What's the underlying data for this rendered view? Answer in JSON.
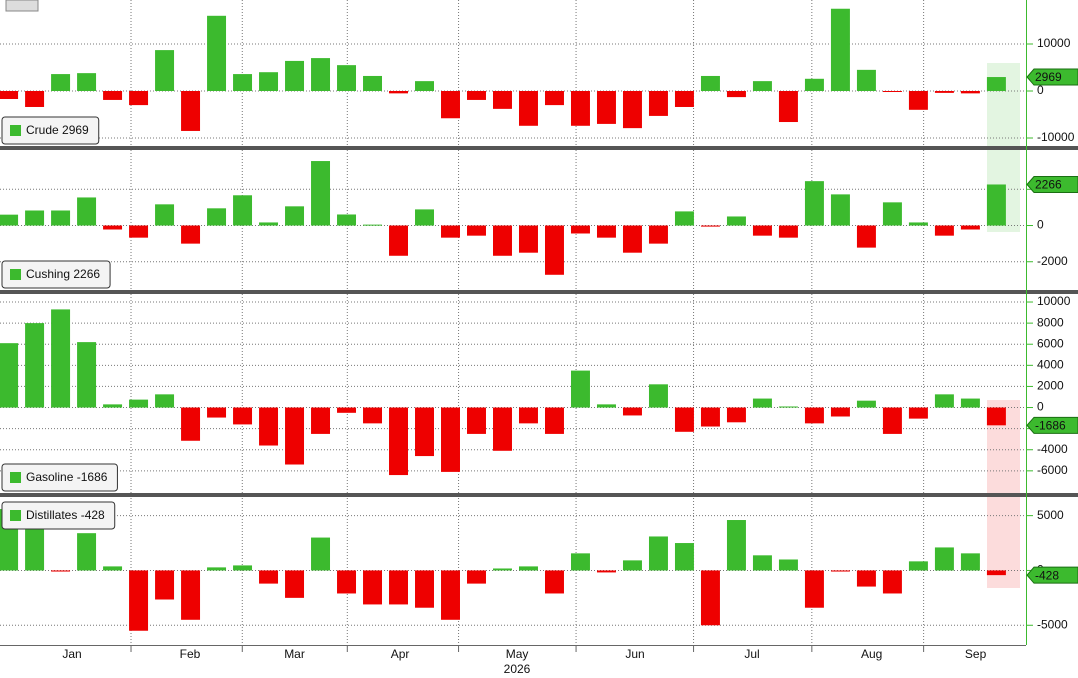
{
  "chart_data": [
    {
      "type": "bar",
      "legend": "lower left",
      "grid": true,
      "series": [
        {
          "name": "Crude",
          "color": "#3cba2e",
          "negative_color": "#ee0000",
          "values": [
            -1700,
            -3400,
            3600,
            3800,
            -1900,
            -3000,
            8700,
            -8500,
            16000,
            3600,
            4000,
            6400,
            7000,
            5500,
            3200,
            -500,
            2100,
            -5800,
            -1900,
            -3800,
            -7400,
            -3000,
            -7400,
            -7000,
            -7900,
            -5300,
            -3400,
            3200,
            -1300,
            2100,
            -6600,
            2600,
            17500,
            4500,
            -200,
            -4000,
            -400,
            -500,
            2969
          ]
        }
      ],
      "ylim": [
        -11700,
        19360
      ],
      "yticks": [
        10000,
        0,
        -10000
      ]
    },
    {
      "type": "bar",
      "legend": "lower left",
      "grid": true,
      "series": [
        {
          "name": "Cushing",
          "color": "#3cba2e",
          "negative_color": "#ee0000",
          "values": [
            600,
            830,
            830,
            1550,
            -220,
            -670,
            1170,
            -1000,
            950,
            1670,
            170,
            1060,
            3560,
            610,
            50,
            -1670,
            890,
            -670,
            -560,
            -1670,
            -1500,
            -2720,
            -440,
            -670,
            -1500,
            -1000,
            780,
            -60,
            500,
            -560,
            -670,
            2450,
            1720,
            -1220,
            1280,
            170,
            -560,
            -220,
            2266
          ]
        }
      ],
      "ylim": [
        -3560,
        4170
      ],
      "yticks": [
        2000,
        0,
        -2000
      ]
    },
    {
      "type": "bar",
      "legend": "lower left",
      "grid": true,
      "series": [
        {
          "name": "Gasoline",
          "color": "#3cba2e",
          "negative_color": "#ee0000",
          "values": [
            6100,
            8000,
            9300,
            6200,
            300,
            750,
            1250,
            -3150,
            -950,
            -1600,
            -3600,
            -5400,
            -2500,
            -500,
            -1500,
            -6400,
            -4600,
            -6100,
            -2500,
            -4100,
            -1500,
            -2500,
            3500,
            300,
            -750,
            2200,
            -2300,
            -1800,
            -1400,
            850,
            100,
            -1500,
            -850,
            650,
            -2500,
            -1050,
            1250,
            850,
            -1686
          ]
        }
      ],
      "ylim": [
        -8100,
        10760
      ],
      "yticks": [
        10000,
        8000,
        6000,
        4000,
        2000,
        0,
        -2000,
        -4000,
        -6000
      ]
    },
    {
      "type": "bar",
      "legend": "upper left",
      "grid": true,
      "series": [
        {
          "name": "Distillates",
          "color": "#3cba2e",
          "negative_color": "#ee0000",
          "values": [
            5600,
            5600,
            -100,
            3400,
            370,
            -5500,
            -2650,
            -4500,
            280,
            460,
            -1200,
            -2500,
            3000,
            -2100,
            -3100,
            -3100,
            -3400,
            -4500,
            -1200,
            180,
            370,
            -2100,
            1560,
            -180,
            920,
            3100,
            2500,
            -5000,
            4600,
            1380,
            1000,
            -3400,
            -100,
            -1470,
            -2100,
            830,
            2100,
            1560,
            -428
          ]
        }
      ],
      "ylim": [
        -6800,
        6700
      ],
      "yticks": [
        5000,
        0,
        -5000
      ]
    }
  ],
  "x_axis": {
    "xlim": [
      -0.33,
      39.1
    ],
    "year": "2026",
    "categories": [
      null,
      null,
      null,
      null,
      null,
      null,
      null,
      null,
      null,
      null,
      null,
      null,
      null,
      null,
      null,
      null,
      null,
      null,
      null,
      null,
      null,
      null,
      null,
      null,
      null,
      null,
      null,
      null,
      null,
      null,
      null,
      null,
      null,
      null,
      null,
      null,
      null,
      null,
      null
    ],
    "xticks": [
      {
        "value": 2.44,
        "label": "Jan"
      },
      {
        "value": 6.98,
        "label": "Feb"
      },
      {
        "value": 11.0,
        "label": "Mar"
      },
      {
        "value": 15.06,
        "label": "Apr"
      },
      {
        "value": 19.56,
        "label": "May"
      },
      {
        "value": 24.1,
        "label": "Jun"
      },
      {
        "value": 28.6,
        "label": "Jul"
      },
      {
        "value": 33.2,
        "label": "Aug"
      },
      {
        "value": 37.2,
        "label": "Sep"
      }
    ]
  }
}
